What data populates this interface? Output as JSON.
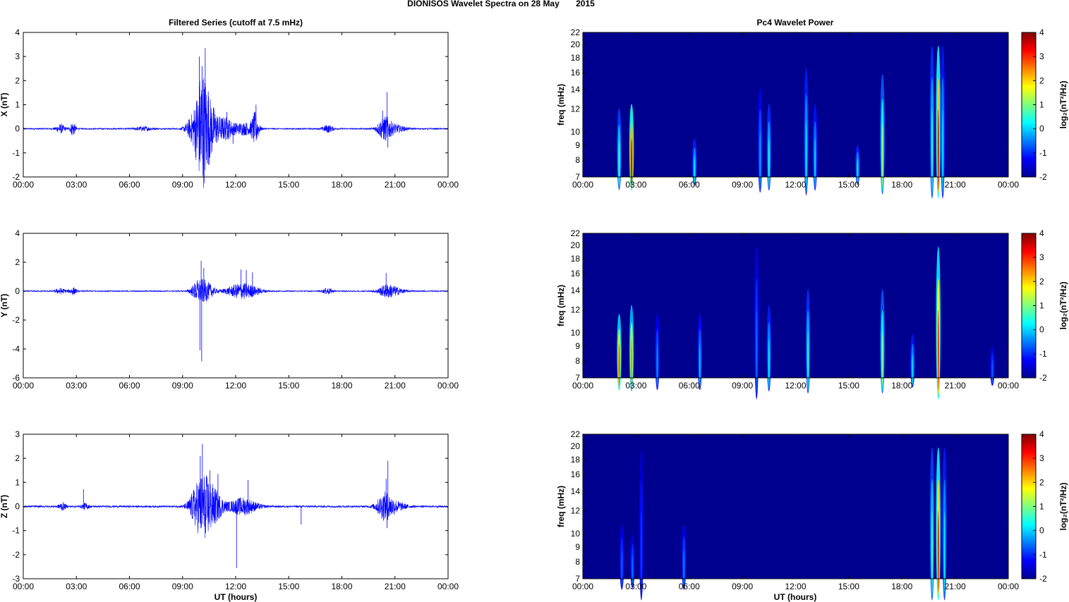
{
  "figure": {
    "title": "DIONISOS Wavelet Spectra on 28 May       2015",
    "left_title": "Filtered Series (cutoff at 7.5 mHz)",
    "right_title": "Pc4 Wavelet Power",
    "xlabel": "UT (hours)",
    "colors": {
      "trace": "#0000ff",
      "spec_bg": "#00008f"
    }
  },
  "chart_data": [
    {
      "type": "line",
      "panel": "X",
      "ylabel": "X (nT)",
      "ylim": [
        -2,
        4
      ],
      "yticks": [
        -2,
        -1,
        0,
        1,
        2,
        3,
        4
      ],
      "xlim": [
        0,
        24
      ],
      "xticks": [
        0,
        3,
        6,
        9,
        12,
        15,
        18,
        21,
        24
      ],
      "xticklabels": [
        "00:00",
        "03:00",
        "06:00",
        "09:00",
        "12:00",
        "15:00",
        "18:00",
        "21:00",
        "00:00"
      ],
      "baseline_noise": 0.03,
      "bursts": [
        {
          "t": 2.1,
          "w": 0.25,
          "amp": 0.18
        },
        {
          "t": 2.8,
          "w": 0.15,
          "amp": 0.3
        },
        {
          "t": 6.8,
          "w": 0.5,
          "amp": 0.08
        },
        {
          "t": 9.6,
          "w": 0.4,
          "amp": 0.5
        },
        {
          "t": 10.1,
          "w": 0.35,
          "amp": 2.2
        },
        {
          "t": 10.6,
          "w": 0.4,
          "amp": 0.9
        },
        {
          "t": 11.4,
          "w": 0.5,
          "amp": 0.45
        },
        {
          "t": 12.5,
          "w": 0.6,
          "amp": 0.25
        },
        {
          "t": 13.1,
          "w": 0.2,
          "amp": 0.6
        },
        {
          "t": 17.2,
          "w": 0.3,
          "amp": 0.15
        },
        {
          "t": 20.4,
          "w": 0.4,
          "amp": 0.45
        },
        {
          "t": 21.0,
          "w": 0.6,
          "amp": 0.15
        }
      ],
      "spikes": [
        {
          "t": 9.95,
          "v": 3.0
        },
        {
          "t": 10.1,
          "v": 2.6
        },
        {
          "t": 10.28,
          "v": 3.35
        },
        {
          "t": 10.45,
          "v": 1.55
        },
        {
          "t": 10.05,
          "v": -1.05
        },
        {
          "t": 10.35,
          "v": -0.95
        },
        {
          "t": 11.5,
          "v": 0.7
        },
        {
          "t": 11.85,
          "v": -0.62
        },
        {
          "t": 13.15,
          "v": 1.0
        },
        {
          "t": 20.3,
          "v": 0.75
        },
        {
          "t": 20.55,
          "v": 1.52
        },
        {
          "t": 20.6,
          "v": -0.78
        }
      ]
    },
    {
      "type": "line",
      "panel": "Y",
      "ylabel": "Y (nT)",
      "ylim": [
        -6,
        4
      ],
      "yticks": [
        -6,
        -4,
        -2,
        0,
        2,
        4
      ],
      "xlim": [
        0,
        24
      ],
      "xticks": [
        0,
        3,
        6,
        9,
        12,
        15,
        18,
        21,
        24
      ],
      "xticklabels": [
        "00:00",
        "03:00",
        "06:00",
        "09:00",
        "12:00",
        "15:00",
        "18:00",
        "21:00",
        "00:00"
      ],
      "baseline_noise": 0.04,
      "bursts": [
        {
          "t": 2.1,
          "w": 0.3,
          "amp": 0.2
        },
        {
          "t": 2.8,
          "w": 0.2,
          "amp": 0.25
        },
        {
          "t": 9.9,
          "w": 0.4,
          "amp": 0.7
        },
        {
          "t": 10.4,
          "w": 0.4,
          "amp": 0.5
        },
        {
          "t": 12.4,
          "w": 0.9,
          "amp": 0.55
        },
        {
          "t": 17.2,
          "w": 0.3,
          "amp": 0.2
        },
        {
          "t": 20.5,
          "w": 0.5,
          "amp": 0.35
        },
        {
          "t": 21.0,
          "w": 0.6,
          "amp": 0.2
        }
      ],
      "spikes": [
        {
          "t": 9.98,
          "v": -4.1
        },
        {
          "t": 10.08,
          "v": -4.85
        },
        {
          "t": 10.05,
          "v": 2.1
        },
        {
          "t": 10.2,
          "v": 1.6
        },
        {
          "t": 12.3,
          "v": 1.5
        },
        {
          "t": 12.6,
          "v": 1.45
        },
        {
          "t": 12.95,
          "v": 1.3
        },
        {
          "t": 20.5,
          "v": 1.25
        }
      ]
    },
    {
      "type": "line",
      "panel": "Z",
      "ylabel": "Z (nT)",
      "ylim": [
        -3,
        3
      ],
      "yticks": [
        -3,
        -2,
        -1,
        0,
        1,
        2,
        3
      ],
      "xlim": [
        0,
        24
      ],
      "xticks": [
        0,
        3,
        6,
        9,
        12,
        15,
        18,
        21,
        24
      ],
      "xticklabels": [
        "00:00",
        "03:00",
        "06:00",
        "09:00",
        "12:00",
        "15:00",
        "18:00",
        "21:00",
        "00:00"
      ],
      "baseline_noise": 0.04,
      "bursts": [
        {
          "t": 2.2,
          "w": 0.2,
          "amp": 0.15
        },
        {
          "t": 3.5,
          "w": 0.2,
          "amp": 0.12
        },
        {
          "t": 9.7,
          "w": 0.4,
          "amp": 0.5
        },
        {
          "t": 10.2,
          "w": 0.45,
          "amp": 1.1
        },
        {
          "t": 10.8,
          "w": 0.5,
          "amp": 0.6
        },
        {
          "t": 12.4,
          "w": 0.8,
          "amp": 0.35
        },
        {
          "t": 20.4,
          "w": 0.45,
          "amp": 0.5
        },
        {
          "t": 21.0,
          "w": 0.6,
          "amp": 0.2
        }
      ],
      "spikes": [
        {
          "t": 3.4,
          "v": 0.72
        },
        {
          "t": 10.0,
          "v": 2.1
        },
        {
          "t": 10.12,
          "v": 2.6
        },
        {
          "t": 10.55,
          "v": 1.5
        },
        {
          "t": 10.3,
          "v": -1.1
        },
        {
          "t": 11.0,
          "v": 1.35
        },
        {
          "t": 12.05,
          "v": -2.55
        },
        {
          "t": 12.7,
          "v": 1.1
        },
        {
          "t": 15.7,
          "v": -0.75
        },
        {
          "t": 20.5,
          "v": 1.15
        },
        {
          "t": 20.6,
          "v": 1.9
        },
        {
          "t": 20.55,
          "v": -0.9
        }
      ]
    },
    {
      "type": "heatmap",
      "panel": "X-power",
      "ylabel": "freq (mHz)",
      "ylim": [
        7,
        22
      ],
      "yscale": "log",
      "yticks": [
        7,
        8,
        9,
        10,
        12,
        14,
        16,
        18,
        20,
        22
      ],
      "xlim": [
        0,
        24
      ],
      "xticks": [
        0,
        3,
        6,
        9,
        12,
        15,
        18,
        21,
        24
      ],
      "xticklabels": [
        "00:00",
        "03:00",
        "06:00",
        "09:00",
        "12:00",
        "15:00",
        "18:00",
        "21:00",
        "00:00"
      ],
      "colorbar": {
        "label": "log₂(nT²/Hz)",
        "range": [
          -2,
          4
        ],
        "ticks": [
          -2,
          -1,
          0,
          1,
          2,
          3,
          4
        ]
      },
      "streaks": [
        {
          "t": 2.05,
          "ftop": 12.5,
          "level": 0.8,
          "w": 0.05
        },
        {
          "t": 2.75,
          "ftop": 13,
          "level": 4.0,
          "w": 0.05
        },
        {
          "t": 6.3,
          "ftop": 9.5,
          "level": 0.3,
          "w": 0.04
        },
        {
          "t": 10.0,
          "ftop": 15,
          "level": -0.2,
          "w": 0.04
        },
        {
          "t": 10.5,
          "ftop": 13,
          "level": 0.5,
          "w": 0.04
        },
        {
          "t": 12.6,
          "ftop": 18,
          "level": 0.3,
          "w": 0.04
        },
        {
          "t": 13.1,
          "ftop": 13,
          "level": 0.1,
          "w": 0.04
        },
        {
          "t": 15.5,
          "ftop": 9,
          "level": 0.3,
          "w": 0.05
        },
        {
          "t": 16.9,
          "ftop": 17,
          "level": 1.3,
          "w": 0.04
        },
        {
          "t": 19.7,
          "ftop": 22,
          "level": 0.6,
          "w": 0.05
        },
        {
          "t": 20.05,
          "ftop": 22,
          "level": 3.8,
          "w": 0.05
        },
        {
          "t": 20.3,
          "ftop": 22,
          "level": 0.2,
          "w": 0.05
        }
      ]
    },
    {
      "type": "heatmap",
      "panel": "Y-power",
      "ylabel": "freq (mHz)",
      "ylim": [
        7,
        22
      ],
      "yscale": "log",
      "yticks": [
        7,
        8,
        9,
        10,
        12,
        14,
        16,
        18,
        20,
        22
      ],
      "xlim": [
        0,
        24
      ],
      "xticks": [
        0,
        3,
        6,
        9,
        12,
        15,
        18,
        21,
        24
      ],
      "xticklabels": [
        "00:00",
        "03:00",
        "06:00",
        "09:00",
        "12:00",
        "15:00",
        "18:00",
        "21:00",
        "00:00"
      ],
      "colorbar": {
        "label": "log₂(nT²/Hz)",
        "range": [
          -2,
          4
        ],
        "ticks": [
          -2,
          -1,
          0,
          1,
          2,
          3,
          4
        ]
      },
      "streaks": [
        {
          "t": 2.05,
          "ftop": 12,
          "level": 3.0,
          "w": 0.06
        },
        {
          "t": 2.75,
          "ftop": 13,
          "level": 2.6,
          "w": 0.05
        },
        {
          "t": 4.2,
          "ftop": 12,
          "level": -0.3,
          "w": 0.04
        },
        {
          "t": 6.6,
          "ftop": 12,
          "level": 0.0,
          "w": 0.04
        },
        {
          "t": 9.8,
          "ftop": 22,
          "level": -0.5,
          "w": 0.04
        },
        {
          "t": 10.5,
          "ftop": 13,
          "level": 0.3,
          "w": 0.04
        },
        {
          "t": 12.7,
          "ftop": 15,
          "level": 0.6,
          "w": 0.05
        },
        {
          "t": 16.9,
          "ftop": 15,
          "level": 1.2,
          "w": 0.04
        },
        {
          "t": 18.6,
          "ftop": 10,
          "level": 0.2,
          "w": 0.04
        },
        {
          "t": 20.05,
          "ftop": 22,
          "level": 3.4,
          "w": 0.05
        },
        {
          "t": 23.1,
          "ftop": 9,
          "level": -0.6,
          "w": 0.03
        }
      ]
    },
    {
      "type": "heatmap",
      "panel": "Z-power",
      "ylabel": "freq (mHz)",
      "ylim": [
        7,
        22
      ],
      "yscale": "log",
      "yticks": [
        7,
        8,
        9,
        10,
        12,
        14,
        16,
        18,
        20,
        22
      ],
      "xlim": [
        0,
        24
      ],
      "xticks": [
        0,
        3,
        6,
        9,
        12,
        15,
        18,
        21,
        24
      ],
      "xticklabels": [
        "00:00",
        "03:00",
        "06:00",
        "09:00",
        "12:00",
        "15:00",
        "18:00",
        "21:00",
        "00:00"
      ],
      "colorbar": {
        "label": "log₂(nT²/Hz)",
        "range": [
          -2,
          4
        ],
        "ticks": [
          -2,
          -1,
          0,
          1,
          2,
          3,
          4
        ]
      },
      "streaks": [
        {
          "t": 2.2,
          "ftop": 11,
          "level": -0.6,
          "w": 0.03
        },
        {
          "t": 2.8,
          "ftop": 10,
          "level": -0.5,
          "w": 0.03
        },
        {
          "t": 3.3,
          "ftop": 22,
          "level": -0.8,
          "w": 0.03
        },
        {
          "t": 5.7,
          "ftop": 11,
          "level": -0.4,
          "w": 0.03
        },
        {
          "t": 19.7,
          "ftop": 22,
          "level": 0.8,
          "w": 0.06
        },
        {
          "t": 20.05,
          "ftop": 22,
          "level": 3.6,
          "w": 0.06
        },
        {
          "t": 20.4,
          "ftop": 22,
          "level": 0.3,
          "w": 0.05
        }
      ]
    }
  ]
}
